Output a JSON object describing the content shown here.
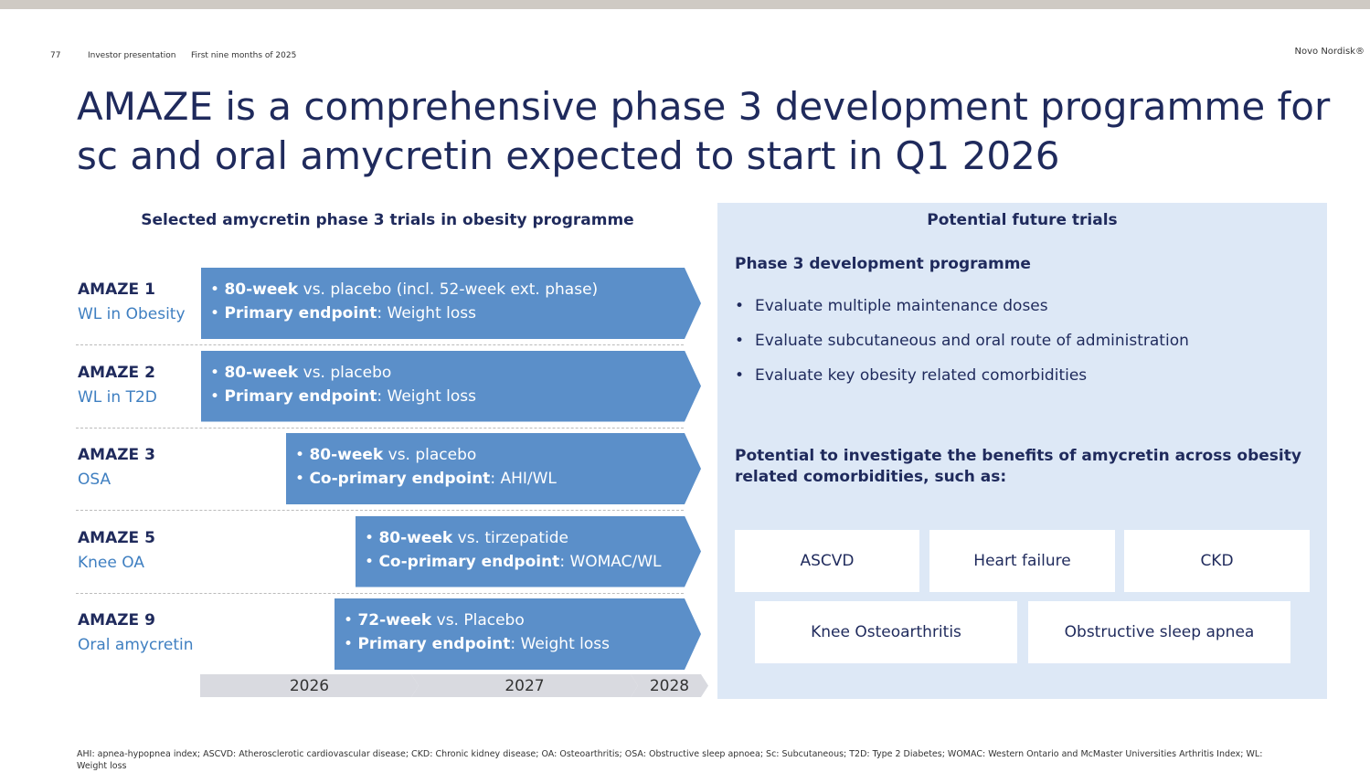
{
  "header": {
    "page": "77",
    "document": "Investor presentation",
    "period": "First nine months of 2025",
    "brand": "Novo Nordisk®"
  },
  "title": [
    "AMAZE is a comprehensive phase 3 development programme for",
    "sc and oral amycretin expected to start in Q1 2026"
  ],
  "left": {
    "heading": "Selected amycretin phase 3 trials in obesity programme",
    "trials": [
      {
        "name": "AMAZE 1",
        "subtitle": "WL in Obesity",
        "bullets": [
          [
            "80-week",
            " vs. placebo (incl. 52-week ext. phase)"
          ],
          [
            "Primary endpoint",
            ": Weight loss"
          ]
        ]
      },
      {
        "name": "AMAZE 2",
        "subtitle": "WL in T2D",
        "bullets": [
          [
            "80-week",
            " vs. placebo"
          ],
          [
            "Primary endpoint",
            ": Weight loss"
          ]
        ]
      },
      {
        "name": "AMAZE 3",
        "subtitle": "OSA",
        "bullets": [
          [
            "80-week",
            " vs. placebo"
          ],
          [
            "Co-primary endpoint",
            ": AHI/WL"
          ]
        ]
      },
      {
        "name": "AMAZE 5",
        "subtitle": "Knee OA",
        "bullets": [
          [
            "80-week",
            " vs. tirzepatide"
          ],
          [
            "Co-primary endpoint",
            ": WOMAC/WL"
          ]
        ]
      },
      {
        "name": "AMAZE 9",
        "subtitle": "Oral amycretin",
        "bullets": [
          [
            "72-week",
            " vs. Placebo"
          ],
          [
            "Primary endpoint",
            ": Weight loss"
          ]
        ]
      }
    ],
    "years": [
      "2026",
      "2027",
      "2028"
    ]
  },
  "right": {
    "heading": "Potential future trials",
    "subheading": "Phase 3 development programme",
    "bullets": [
      "Evaluate multiple maintenance doses",
      "Evaluate subcutaneous and oral route of administration",
      "Evaluate key obesity related comorbidities"
    ],
    "potential": "Potential to investigate the benefits of amycretin across obesity related comorbidities, such as:",
    "comorbidities": [
      [
        "ASCVD",
        "Heart failure",
        "CKD"
      ],
      [
        "Knee Osteoarthritis",
        "Obstructive sleep apnea"
      ]
    ]
  },
  "footnote": "AHI: apnea-hypopnea index; ASCVD: Atherosclerotic cardiovascular disease; CKD: Chronic kidney disease; OA: Osteoarthritis; OSA: Obstructive sleep apnoea; Sc: Subcutaneous; T2D: Type 2 Diabetes; WOMAC: Western Ontario and McMaster Universities Arthritis Index; WL: Weight loss"
}
